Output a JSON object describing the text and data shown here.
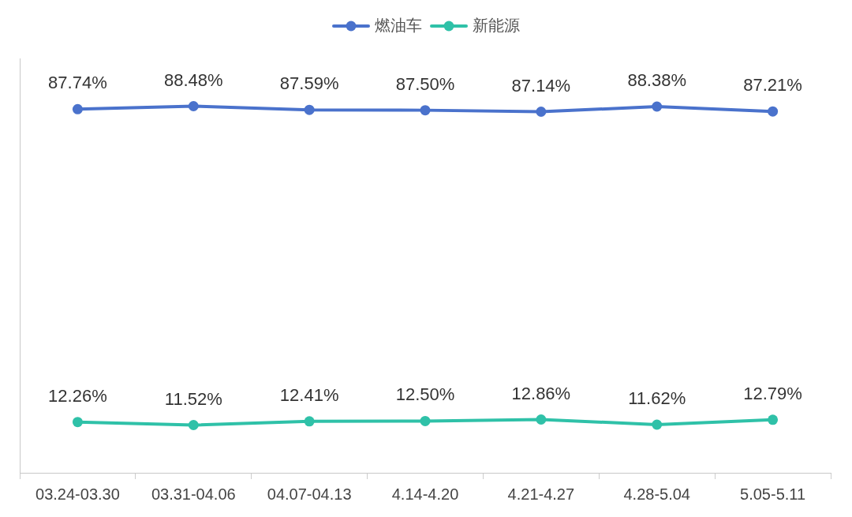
{
  "chart_data": {
    "type": "line",
    "categories": [
      "03.24-03.30",
      "03.31-04.06",
      "04.07-04.13",
      "4.14-4.20",
      "4.21-4.27",
      "4.28-5.04",
      "5.05-5.11"
    ],
    "series": [
      {
        "name": "燃油车",
        "color": "#4a72cc",
        "values": [
          87.74,
          88.48,
          87.59,
          87.5,
          87.14,
          88.38,
          87.21
        ],
        "value_labels": [
          "87.74%",
          "88.48%",
          "87.59%",
          "87.50%",
          "87.14%",
          "88.38%",
          "87.21%"
        ]
      },
      {
        "name": "新能源",
        "color": "#2fc1a8",
        "values": [
          12.26,
          11.52,
          12.41,
          12.5,
          12.86,
          11.62,
          12.79
        ],
        "value_labels": [
          "12.26%",
          "11.52%",
          "12.41%",
          "12.50%",
          "12.86%",
          "11.62%",
          "12.79%"
        ]
      }
    ],
    "ylim": [
      0,
      100
    ],
    "tick_labels": "x",
    "legend": "top",
    "marker": "circle",
    "line_style": "solid"
  }
}
